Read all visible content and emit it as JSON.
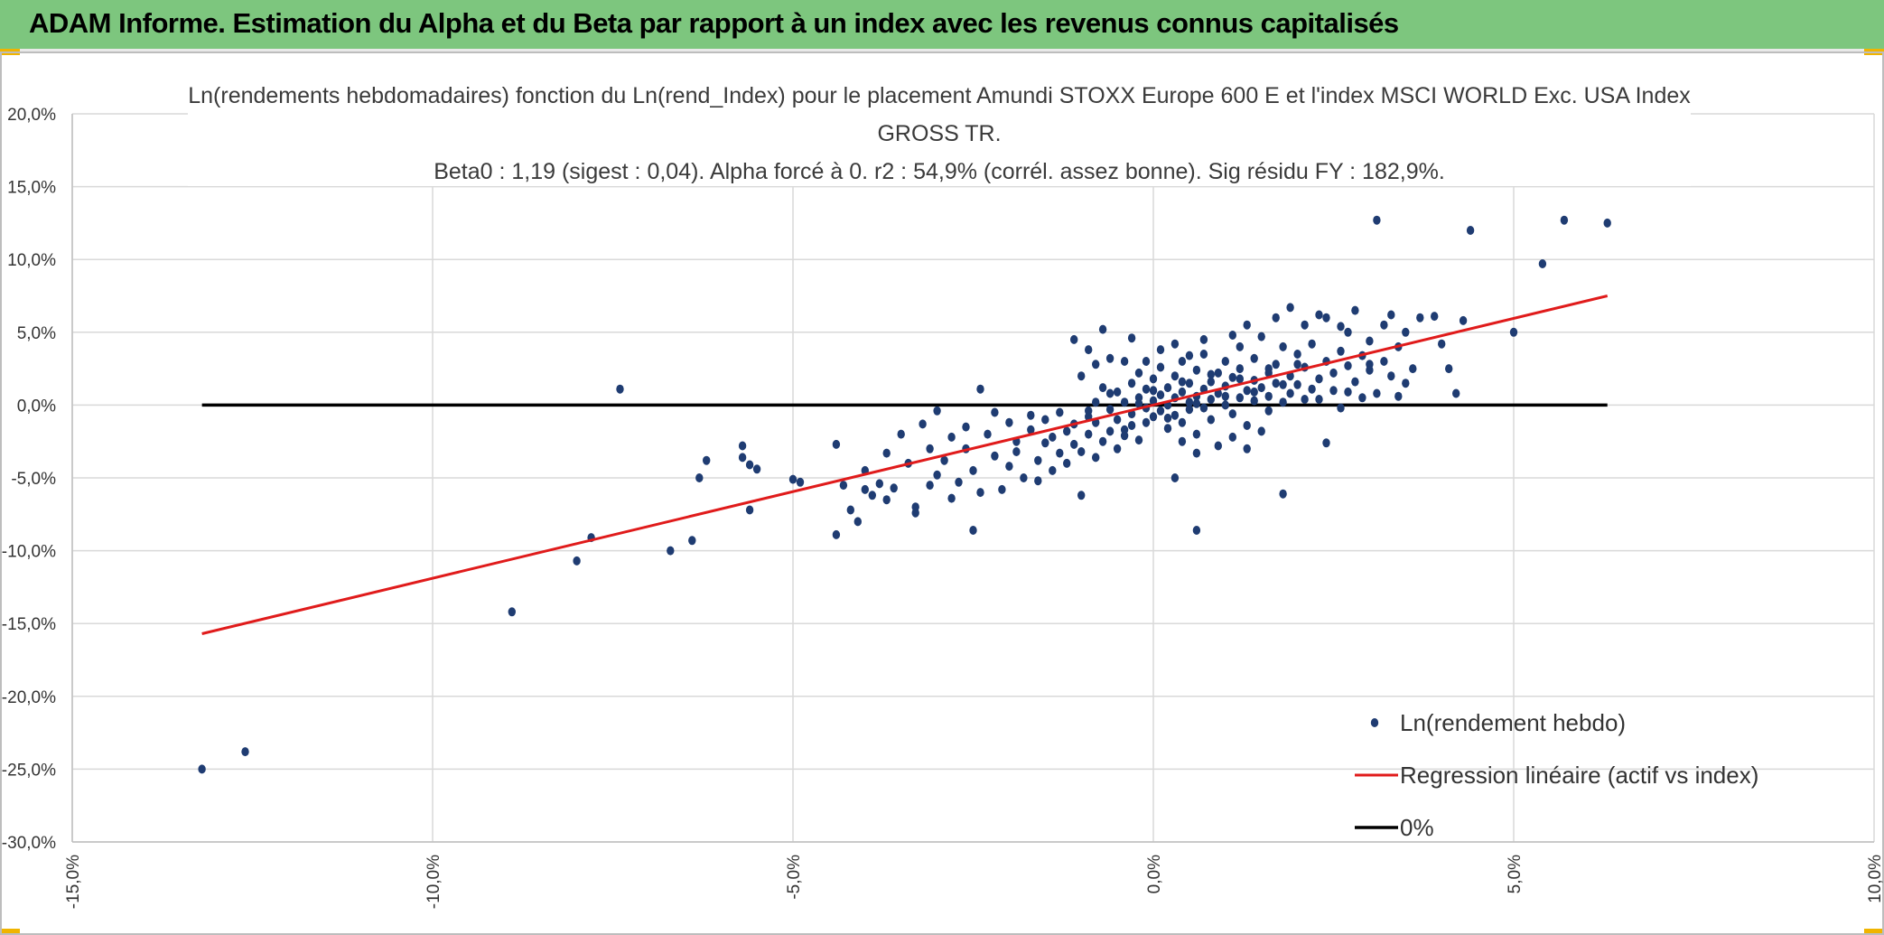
{
  "header": {
    "title": "ADAM Informe. Estimation du Alpha et du Beta par rapport à un index avec les revenus connus capitalisés"
  },
  "chart_data": {
    "type": "scatter",
    "title_lines": [
      "Ln(rendements hebdomadaires) fonction du Ln(rend_Index) pour le placement Amundi STOXX Europe 600 E et l'index MSCI WORLD Exc. USA Index",
      "GROSS TR.",
      "Beta0 : 1,19 (sigest : 0,04). Alpha forcé à 0. r2 : 54,9% (corrél. assez bonne). Sig résidu FY : 182,9%."
    ],
    "xlim": [
      -0.15,
      0.1
    ],
    "ylim": [
      -0.3,
      0.2
    ],
    "x_ticks": [
      "-15,0%",
      "-10,0%",
      "-5,0%",
      "0,0%",
      "5,0%",
      "10,0%"
    ],
    "y_ticks": [
      "20,0%",
      "15,0%",
      "10,0%",
      "5,0%",
      "0,0%",
      "-5,0%",
      "-10,0%",
      "-15,0%",
      "-20,0%",
      "-25,0%",
      "-30,0%"
    ],
    "grid": true,
    "legend_position": "bottom-right",
    "colors": {
      "points": "#1f3c72",
      "regression": "#e01b1b",
      "zero": "#000000",
      "grid": "#d9d9d9"
    },
    "series": [
      {
        "name": "Ln(rendement hebdo)",
        "kind": "scatter",
        "points": [
          [
            -0.132,
            -0.25
          ],
          [
            -0.126,
            -0.238
          ],
          [
            -0.089,
            -0.142
          ],
          [
            -0.08,
            -0.107
          ],
          [
            -0.078,
            -0.091
          ],
          [
            -0.074,
            0.011
          ],
          [
            -0.067,
            -0.1
          ],
          [
            -0.064,
            -0.093
          ],
          [
            -0.063,
            -0.05
          ],
          [
            -0.062,
            -0.038
          ],
          [
            -0.057,
            -0.036
          ],
          [
            -0.057,
            -0.028
          ],
          [
            -0.056,
            -0.041
          ],
          [
            -0.056,
            -0.072
          ],
          [
            -0.055,
            -0.044
          ],
          [
            -0.05,
            -0.051
          ],
          [
            -0.049,
            -0.053
          ],
          [
            -0.044,
            -0.089
          ],
          [
            -0.044,
            -0.027
          ],
          [
            -0.043,
            -0.055
          ],
          [
            -0.042,
            -0.072
          ],
          [
            -0.041,
            -0.08
          ],
          [
            -0.04,
            -0.045
          ],
          [
            -0.04,
            -0.058
          ],
          [
            -0.039,
            -0.062
          ],
          [
            -0.038,
            -0.054
          ],
          [
            -0.037,
            -0.065
          ],
          [
            -0.037,
            -0.033
          ],
          [
            -0.036,
            -0.057
          ],
          [
            -0.035,
            -0.02
          ],
          [
            -0.034,
            -0.04
          ],
          [
            -0.033,
            -0.07
          ],
          [
            -0.033,
            -0.074
          ],
          [
            -0.032,
            -0.013
          ],
          [
            -0.031,
            -0.03
          ],
          [
            -0.031,
            -0.055
          ],
          [
            -0.03,
            -0.048
          ],
          [
            -0.03,
            -0.004
          ],
          [
            -0.029,
            -0.038
          ],
          [
            -0.028,
            -0.064
          ],
          [
            -0.028,
            -0.022
          ],
          [
            -0.027,
            -0.053
          ],
          [
            -0.026,
            -0.03
          ],
          [
            -0.026,
            -0.015
          ],
          [
            -0.025,
            -0.045
          ],
          [
            -0.025,
            -0.086
          ],
          [
            -0.024,
            -0.06
          ],
          [
            -0.024,
            0.011
          ],
          [
            -0.023,
            -0.02
          ],
          [
            -0.022,
            -0.005
          ],
          [
            -0.022,
            -0.035
          ],
          [
            -0.021,
            -0.058
          ],
          [
            -0.02,
            -0.012
          ],
          [
            -0.02,
            -0.042
          ],
          [
            -0.019,
            -0.025
          ],
          [
            -0.019,
            -0.032
          ],
          [
            -0.018,
            -0.05
          ],
          [
            -0.017,
            -0.017
          ],
          [
            -0.017,
            -0.007
          ],
          [
            -0.016,
            -0.038
          ],
          [
            -0.016,
            -0.052
          ],
          [
            -0.015,
            -0.026
          ],
          [
            -0.015,
            -0.01
          ],
          [
            -0.014,
            -0.022
          ],
          [
            -0.014,
            -0.045
          ],
          [
            -0.013,
            -0.033
          ],
          [
            -0.013,
            -0.005
          ],
          [
            -0.012,
            -0.018
          ],
          [
            -0.012,
            -0.04
          ],
          [
            -0.011,
            -0.027
          ],
          [
            -0.011,
            -0.013
          ],
          [
            -0.01,
            -0.062
          ],
          [
            -0.01,
            -0.032
          ],
          [
            -0.009,
            -0.008
          ],
          [
            -0.009,
            -0.02
          ],
          [
            -0.008,
            0.002
          ],
          [
            -0.008,
            -0.036
          ],
          [
            -0.008,
            -0.012
          ],
          [
            -0.007,
            -0.025
          ],
          [
            -0.007,
            0.012
          ],
          [
            -0.006,
            -0.003
          ],
          [
            -0.006,
            -0.018
          ],
          [
            -0.005,
            -0.03
          ],
          [
            -0.005,
            0.009
          ],
          [
            -0.005,
            -0.01
          ],
          [
            -0.004,
            0.002
          ],
          [
            -0.004,
            -0.021
          ],
          [
            -0.003,
            0.015
          ],
          [
            -0.003,
            -0.006
          ],
          [
            -0.003,
            -0.014
          ],
          [
            -0.002,
            0.005
          ],
          [
            -0.002,
            -0.024
          ],
          [
            -0.002,
            0.022
          ],
          [
            -0.001,
            -0.002
          ],
          [
            -0.001,
            0.011
          ],
          [
            -0.001,
            -0.012
          ],
          [
            0.0,
            0.003
          ],
          [
            0.0,
            -0.008
          ],
          [
            0.0,
            0.018
          ],
          [
            0.001,
            0.007
          ],
          [
            0.001,
            -0.004
          ],
          [
            0.001,
            0.026
          ],
          [
            0.002,
            0.0
          ],
          [
            0.002,
            0.012
          ],
          [
            0.002,
            -0.016
          ],
          [
            0.003,
            0.005
          ],
          [
            0.003,
            0.02
          ],
          [
            0.003,
            -0.007
          ],
          [
            0.004,
            0.009
          ],
          [
            0.004,
            -0.012
          ],
          [
            0.004,
            0.03
          ],
          [
            0.005,
            0.002
          ],
          [
            0.005,
            0.015
          ],
          [
            0.005,
            -0.003
          ],
          [
            0.006,
            0.024
          ],
          [
            0.006,
            0.006
          ],
          [
            0.006,
            -0.02
          ],
          [
            0.007,
            0.011
          ],
          [
            0.007,
            -0.002
          ],
          [
            0.007,
            0.035
          ],
          [
            0.008,
            0.016
          ],
          [
            0.008,
            0.004
          ],
          [
            0.008,
            -0.01
          ],
          [
            0.009,
            0.022
          ],
          [
            0.009,
            0.008
          ],
          [
            0.01,
            0.0
          ],
          [
            0.01,
            0.03
          ],
          [
            0.01,
            0.013
          ],
          [
            0.011,
            -0.006
          ],
          [
            0.011,
            0.019
          ],
          [
            0.012,
            0.005
          ],
          [
            0.012,
            0.04
          ],
          [
            0.012,
            0.025
          ],
          [
            0.013,
            0.01
          ],
          [
            0.013,
            -0.014
          ],
          [
            0.014,
            0.017
          ],
          [
            0.014,
            0.003
          ],
          [
            0.014,
            0.032
          ],
          [
            0.015,
            0.012
          ],
          [
            0.015,
            0.047
          ],
          [
            0.016,
            0.022
          ],
          [
            0.016,
            0.006
          ],
          [
            0.016,
            -0.004
          ],
          [
            0.017,
            0.028
          ],
          [
            0.017,
            0.015
          ],
          [
            0.018,
            0.04
          ],
          [
            0.018,
            0.002
          ],
          [
            0.018,
            -0.061
          ],
          [
            0.019,
            0.02
          ],
          [
            0.019,
            0.008
          ],
          [
            0.02,
            0.035
          ],
          [
            0.02,
            0.014
          ],
          [
            0.021,
            0.055
          ],
          [
            0.021,
            0.026
          ],
          [
            0.022,
            0.011
          ],
          [
            0.022,
            0.042
          ],
          [
            0.023,
            0.018
          ],
          [
            0.023,
            0.004
          ],
          [
            0.024,
            0.03
          ],
          [
            0.024,
            0.06
          ],
          [
            0.025,
            0.022
          ],
          [
            0.025,
            0.01
          ],
          [
            0.026,
            0.037
          ],
          [
            0.026,
            -0.002
          ],
          [
            0.027,
            0.027
          ],
          [
            0.027,
            0.05
          ],
          [
            0.028,
            0.016
          ],
          [
            0.028,
            0.065
          ],
          [
            0.029,
            0.034
          ],
          [
            0.03,
            0.024
          ],
          [
            0.03,
            0.044
          ],
          [
            0.031,
            0.008
          ],
          [
            0.032,
            0.03
          ],
          [
            0.032,
            0.055
          ],
          [
            0.033,
            0.02
          ],
          [
            0.034,
            0.04
          ],
          [
            0.035,
            0.015
          ],
          [
            0.035,
            0.05
          ],
          [
            0.036,
            0.025
          ],
          [
            0.037,
            0.06
          ],
          [
            -0.009,
            -0.004
          ],
          [
            -0.006,
            0.008
          ],
          [
            -0.004,
            -0.017
          ],
          [
            -0.002,
            0.001
          ],
          [
            0.0,
            0.01
          ],
          [
            0.002,
            -0.009
          ],
          [
            0.004,
            0.016
          ],
          [
            0.006,
            0.001
          ],
          [
            0.008,
            0.021
          ],
          [
            0.01,
            0.006
          ],
          [
            0.012,
            0.018
          ],
          [
            0.014,
            0.009
          ],
          [
            0.016,
            0.025
          ],
          [
            0.018,
            0.014
          ],
          [
            0.02,
            0.028
          ],
          [
            -0.01,
            0.02
          ],
          [
            -0.008,
            0.028
          ],
          [
            -0.006,
            0.032
          ],
          [
            -0.004,
            0.03
          ],
          [
            -0.003,
            0.046
          ],
          [
            -0.001,
            0.03
          ],
          [
            0.001,
            0.038
          ],
          [
            0.003,
            0.042
          ],
          [
            0.005,
            0.034
          ],
          [
            0.007,
            0.045
          ],
          [
            -0.011,
            0.045
          ],
          [
            -0.009,
            0.038
          ],
          [
            -0.007,
            0.052
          ],
          [
            0.004,
            -0.025
          ],
          [
            0.006,
            -0.033
          ],
          [
            0.009,
            -0.028
          ],
          [
            0.011,
            -0.022
          ],
          [
            0.013,
            -0.03
          ],
          [
            0.015,
            -0.018
          ],
          [
            0.003,
            -0.05
          ],
          [
            0.006,
            -0.086
          ],
          [
            0.017,
            0.06
          ],
          [
            0.019,
            0.067
          ],
          [
            0.013,
            0.055
          ],
          [
            0.011,
            0.048
          ],
          [
            0.023,
            0.062
          ],
          [
            0.026,
            0.054
          ],
          [
            0.031,
            0.127
          ],
          [
            0.044,
            0.12
          ],
          [
            0.054,
            0.097
          ],
          [
            0.057,
            0.127
          ],
          [
            0.063,
            0.125
          ],
          [
            0.05,
            0.05
          ],
          [
            0.043,
            0.058
          ],
          [
            0.042,
            0.008
          ],
          [
            0.041,
            0.025
          ],
          [
            0.04,
            0.042
          ],
          [
            0.039,
            0.061
          ],
          [
            0.033,
            0.062
          ],
          [
            0.03,
            0.028
          ],
          [
            0.024,
            -0.026
          ],
          [
            0.021,
            0.004
          ],
          [
            0.027,
            0.009
          ],
          [
            0.029,
            0.005
          ],
          [
            0.034,
            0.006
          ]
        ]
      },
      {
        "name": "Regression linéaire (actif vs index)",
        "kind": "line",
        "points": [
          [
            -0.132,
            -0.157
          ],
          [
            0.063,
            0.075
          ]
        ]
      },
      {
        "name": "0%",
        "kind": "line",
        "points": [
          [
            -0.132,
            0.0
          ],
          [
            0.063,
            0.0
          ]
        ]
      }
    ]
  }
}
